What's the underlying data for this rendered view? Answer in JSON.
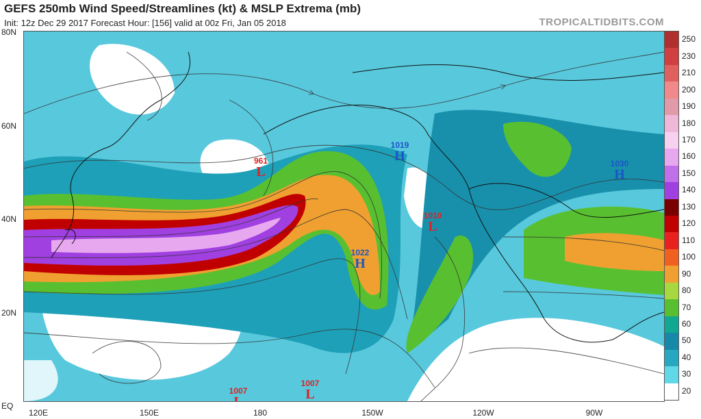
{
  "header": {
    "title": "GEFS 250mb Wind Speed/Streamlines (kt) & MSLP Extrema (mb)",
    "subtitle": "Init: 12z Dec 29 2017   Forecast Hour: [156]   valid at 00z Fri, Jan 05 2018",
    "credit": "TROPICALTIDBITS.COM"
  },
  "axes": {
    "lat_labels": [
      "80N",
      "60N",
      "40N",
      "20N",
      "EQ"
    ],
    "lon_labels": [
      "120E",
      "150E",
      "180",
      "150W",
      "120W",
      "90W"
    ]
  },
  "colorbar": {
    "labels": [
      "250",
      "230",
      "210",
      "200",
      "190",
      "180",
      "170",
      "160",
      "150",
      "140",
      "130",
      "120",
      "110",
      "100",
      "90",
      "80",
      "70",
      "60",
      "50",
      "40",
      "30",
      "20"
    ],
    "colors": [
      "#b03030",
      "#d04040",
      "#e06060",
      "#f08a8a",
      "#e09aa8",
      "#f0b8d8",
      "#f8d0f0",
      "#e8a8f0",
      "#c070e8",
      "#a040e0",
      "#7a0000",
      "#c00000",
      "#e82020",
      "#f06020",
      "#f0a030",
      "#a8d840",
      "#58c030",
      "#10a890",
      "#1888a8",
      "#28a8c0",
      "#60d8e8",
      "#ffffff"
    ]
  },
  "pressure_centers": [
    {
      "type": "L",
      "value": "961"
    },
    {
      "type": "H",
      "value": "1019"
    },
    {
      "type": "L",
      "value": "1010"
    },
    {
      "type": "H",
      "value": "1022"
    },
    {
      "type": "H",
      "value": "1030"
    },
    {
      "type": "L",
      "value": "1007"
    },
    {
      "type": "L",
      "value": "1007"
    }
  ]
}
